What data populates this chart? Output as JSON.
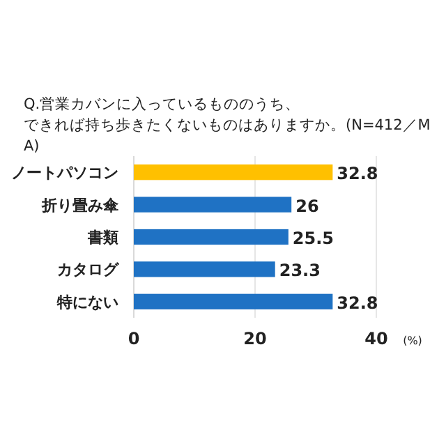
{
  "chart_data": {
    "type": "bar",
    "orientation": "horizontal",
    "title": "Q.営業カバンに入っているもののうち、できれば持ち歩きたくないものはありますか。(N=412／MA)",
    "categories": [
      "ノートパソコン",
      "折り畳み傘",
      "書類",
      "カタログ",
      "特にない"
    ],
    "values": [
      32.8,
      26,
      25.5,
      23.3,
      32.8
    ],
    "colors": [
      "#ffc000",
      "#1f72c4",
      "#1f72c4",
      "#1f72c4",
      "#1f72c4"
    ],
    "xlim": [
      0,
      40
    ],
    "xticks": [
      0,
      20,
      40
    ],
    "xlabel": "(%)",
    "grid": "x",
    "data_labels": true
  }
}
